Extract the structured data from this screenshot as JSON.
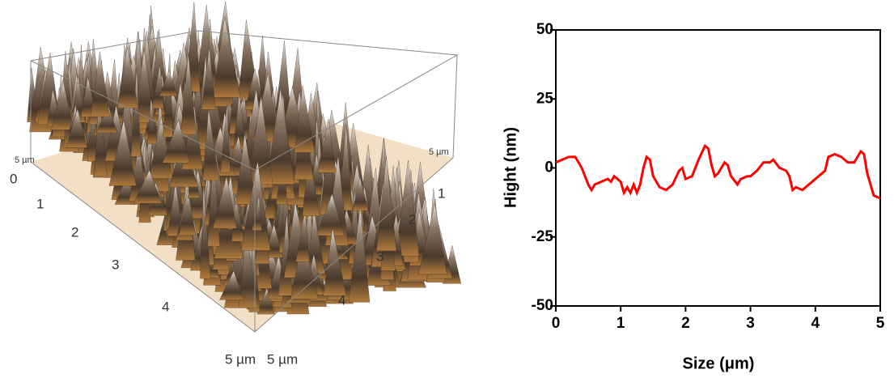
{
  "afm_image": {
    "left_axis_end": "5 µm",
    "left_axis_ticks": [
      "0",
      "1",
      "2",
      "3",
      "4"
    ],
    "left_axis_label": "5 µm",
    "right_axis_label": "5 µm",
    "right_axis_ticks": [
      "1",
      "2",
      "3",
      "4"
    ],
    "right_axis_end": "5 µm"
  },
  "chart_data": {
    "type": "line",
    "xlabel": "Size (μm)",
    "ylabel": "Hight (nm)",
    "xlim": [
      0,
      5
    ],
    "ylim": [
      -50,
      50
    ],
    "xticks": [
      0,
      1,
      2,
      3,
      4,
      5
    ],
    "yticks": [
      -50,
      -25,
      0,
      25,
      50
    ],
    "x": [
      0,
      0.1,
      0.2,
      0.3,
      0.4,
      0.5,
      0.55,
      0.6,
      0.7,
      0.8,
      0.85,
      0.9,
      0.95,
      1.0,
      1.05,
      1.1,
      1.15,
      1.2,
      1.25,
      1.3,
      1.35,
      1.4,
      1.45,
      1.5,
      1.6,
      1.7,
      1.8,
      1.9,
      1.95,
      2.0,
      2.1,
      2.2,
      2.3,
      2.35,
      2.4,
      2.45,
      2.5,
      2.6,
      2.65,
      2.7,
      2.8,
      2.85,
      2.95,
      3.0,
      3.1,
      3.2,
      3.3,
      3.35,
      3.45,
      3.55,
      3.6,
      3.65,
      3.7,
      3.8,
      3.85,
      3.9,
      4.0,
      4.1,
      4.15,
      4.2,
      4.3,
      4.4,
      4.5,
      4.6,
      4.7,
      4.75,
      4.8,
      4.9,
      5.0
    ],
    "series": [
      {
        "color": "#ff0000",
        "values": [
          2,
          3,
          4,
          4,
          0,
          -6,
          -8,
          -6,
          -5,
          -4,
          -5,
          -3,
          -4,
          -5,
          -9,
          -7,
          -9,
          -6,
          -9,
          -6,
          0,
          4,
          3,
          -3,
          -7,
          -8,
          -6,
          -1,
          0,
          -4,
          -3,
          3,
          8,
          7,
          1,
          -3,
          -2,
          2,
          1,
          -3,
          -6,
          -4,
          -3,
          -3,
          -1,
          2,
          2,
          3,
          0,
          -1,
          -3,
          -8,
          -7,
          -8,
          -7,
          -6,
          -4,
          -2,
          -1,
          4,
          5,
          4,
          2,
          2,
          6,
          5,
          -2,
          -10,
          -11
        ]
      }
    ]
  }
}
